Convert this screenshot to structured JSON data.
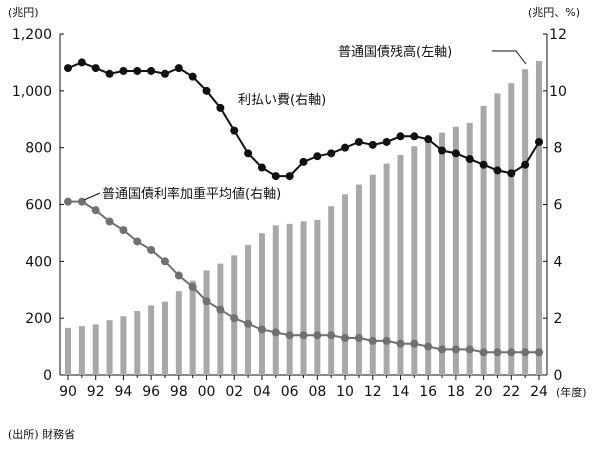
{
  "chart_data": {
    "type": "bar+line",
    "x": [
      "90",
      "91",
      "92",
      "93",
      "94",
      "95",
      "96",
      "97",
      "98",
      "99",
      "00",
      "01",
      "02",
      "03",
      "04",
      "05",
      "06",
      "07",
      "08",
      "09",
      "10",
      "11",
      "12",
      "13",
      "14",
      "15",
      "16",
      "17",
      "18",
      "19",
      "20",
      "21",
      "22",
      "23",
      "24"
    ],
    "x_tick_labels": [
      "90",
      "92",
      "94",
      "96",
      "98",
      "00",
      "02",
      "04",
      "06",
      "08",
      "10",
      "12",
      "14",
      "16",
      "18",
      "20",
      "22",
      "24"
    ],
    "x_unit_label": "(年度)",
    "left_axis": {
      "unit_label": "(兆円)",
      "ylim": [
        0,
        1200
      ],
      "ticks": [
        0,
        200,
        400,
        600,
        800,
        "1,000",
        "1,200"
      ]
    },
    "right_axis": {
      "unit_label": "(兆円、%)",
      "ylim": [
        0,
        12
      ],
      "ticks": [
        0,
        2,
        4,
        6,
        8,
        10,
        12
      ]
    },
    "series": [
      {
        "name": "普通国債残高(左軸)",
        "kind": "bar",
        "axis": "left",
        "color": "#a8a8a8",
        "values": [
          166,
          172,
          178,
          193,
          207,
          225,
          245,
          258,
          295,
          332,
          368,
          392,
          421,
          457,
          499,
          527,
          532,
          541,
          546,
          594,
          636,
          670,
          705,
          744,
          774,
          805,
          831,
          853,
          874,
          887,
          947,
          991,
          1027,
          1076,
          1105
        ]
      },
      {
        "name": "利払い費(右軸)",
        "kind": "line",
        "axis": "right",
        "color": "#111111",
        "values": [
          10.8,
          11.0,
          10.8,
          10.6,
          10.7,
          10.7,
          10.7,
          10.6,
          10.8,
          10.5,
          10.0,
          9.4,
          8.6,
          7.8,
          7.3,
          7.0,
          7.0,
          7.5,
          7.7,
          7.8,
          8.0,
          8.2,
          8.1,
          8.2,
          8.4,
          8.4,
          8.3,
          7.9,
          7.8,
          7.6,
          7.4,
          7.2,
          7.1,
          7.4,
          8.2
        ]
      },
      {
        "name": "普通国債利率加重平均値(右軸)",
        "kind": "line",
        "axis": "right",
        "color": "#707070",
        "values": [
          6.1,
          6.1,
          5.8,
          5.4,
          5.1,
          4.7,
          4.4,
          4.0,
          3.5,
          3.1,
          2.6,
          2.3,
          2.0,
          1.8,
          1.6,
          1.5,
          1.4,
          1.4,
          1.4,
          1.4,
          1.3,
          1.3,
          1.2,
          1.2,
          1.1,
          1.1,
          1.0,
          0.9,
          0.9,
          0.9,
          0.8,
          0.8,
          0.8,
          0.8,
          0.8
        ]
      }
    ],
    "grid": false
  },
  "source": "(出所) 財務省"
}
